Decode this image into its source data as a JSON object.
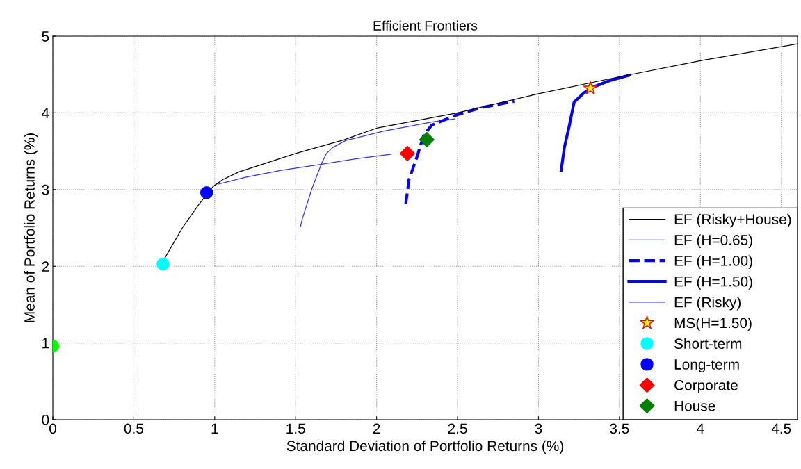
{
  "chart_data": {
    "type": "line",
    "title": "Efficient Frontiers",
    "xlabel": "Standard Deviation of Portfolio Returns (%)",
    "ylabel": "Mean of Portfolio Returns (%)",
    "xlim": [
      0,
      4.6
    ],
    "ylim": [
      0,
      5
    ],
    "xticks": [
      0,
      0.5,
      1,
      1.5,
      2,
      2.5,
      3,
      3.5,
      4,
      4.5
    ],
    "yticks": [
      0,
      1,
      2,
      3,
      4,
      5
    ],
    "grid": true,
    "legend": "bottom right",
    "series": [
      {
        "name": "EF (Risky+House)",
        "color": "#000000",
        "line_style": "solid",
        "x": [
          0.69,
          0.8,
          0.9,
          0.99,
          1.05,
          1.15,
          1.5,
          1.8,
          2.0,
          2.5,
          3.0,
          3.5,
          4.0,
          4.6
        ],
        "values": [
          2.1,
          2.5,
          2.8,
          3.04,
          3.13,
          3.23,
          3.47,
          3.65,
          3.8,
          4.0,
          4.25,
          4.47,
          4.68,
          4.9
        ]
      },
      {
        "name": "EF (H=0.65)",
        "color": "#3333ff",
        "line_style": "solid",
        "x": [
          1.53,
          1.54,
          1.6,
          1.66,
          1.69,
          1.73,
          1.81,
          2.04,
          2.34,
          2.48
        ],
        "values": [
          2.52,
          2.61,
          3.01,
          3.34,
          3.47,
          3.55,
          3.64,
          3.76,
          3.88,
          3.92
        ]
      },
      {
        "name": "EF (H=1.00)",
        "color": "#0000ff",
        "line_style": "dashed",
        "x": [
          2.18,
          2.2,
          2.25,
          2.29,
          2.34,
          2.49,
          2.65,
          2.85
        ],
        "values": [
          2.81,
          3.13,
          3.43,
          3.7,
          3.84,
          3.97,
          4.07,
          4.15
        ]
      },
      {
        "name": "EF (H=1.50)",
        "color": "#0000ff",
        "line_style": "solid",
        "x": [
          3.14,
          3.16,
          3.19,
          3.22,
          3.28,
          3.33,
          3.44,
          3.56
        ],
        "values": [
          3.25,
          3.55,
          3.83,
          4.14,
          4.26,
          4.33,
          4.42,
          4.49
        ]
      },
      {
        "name": "EF (Risky)",
        "color": "#3333ff",
        "line_style": "solid",
        "x": [
          1.02,
          1.06,
          1.19,
          1.41,
          1.66,
          1.87,
          2.09
        ],
        "values": [
          3.07,
          3.09,
          3.16,
          3.25,
          3.33,
          3.4,
          3.46
        ]
      },
      {
        "name": "MS(H=1.50)",
        "type": "scatter",
        "color": "#ffff00",
        "marker": "star",
        "x": [
          3.32
        ],
        "values": [
          4.32
        ]
      },
      {
        "name": "Short-term",
        "type": "scatter",
        "color": "#00ffff",
        "marker": "circle",
        "x": [
          0.68
        ],
        "values": [
          2.03
        ]
      },
      {
        "name": "Long-term",
        "type": "scatter",
        "color": "#0000ff",
        "marker": "circle",
        "x": [
          0.95
        ],
        "values": [
          2.96
        ]
      },
      {
        "name": "Corporate",
        "type": "scatter",
        "color": "#ff0000",
        "marker": "diamond",
        "x": [
          2.19
        ],
        "values": [
          3.47
        ]
      },
      {
        "name": "House",
        "type": "scatter",
        "color": "#008000",
        "marker": "diamond",
        "x": [
          2.31
        ],
        "values": [
          3.65
        ]
      },
      {
        "type": "scatter",
        "color": "#00ff00",
        "marker": "circle",
        "x": [
          0.0
        ],
        "values": [
          0.96
        ]
      }
    ]
  }
}
